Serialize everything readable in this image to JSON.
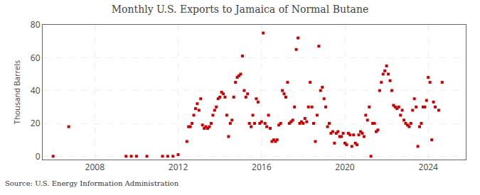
{
  "chart_data": {
    "type": "scatter",
    "title": "Monthly U.S. Exports to Jamaica of Normal Butane",
    "ylabel": "Thousand Barrels",
    "annotations": [
      "Source: U.S. Energy Information Administration"
    ],
    "color": "#cc0000",
    "marker": "square",
    "grid": true,
    "xlim": [
      2005.5,
      2025.8
    ],
    "xticks": [
      2008,
      2012,
      2016,
      2020,
      2024
    ],
    "ylim": [
      -2,
      80
    ],
    "yticks": [
      0,
      20,
      40,
      60,
      80
    ],
    "x": [
      2006.0,
      2006.75,
      2009.5,
      2009.75,
      2010.0,
      2010.5,
      2011.25,
      2011.5,
      2011.75,
      2012.0,
      2012.417,
      2012.5,
      2012.583,
      2012.667,
      2012.75,
      2012.833,
      2012.917,
      2013.0,
      2013.083,
      2013.167,
      2013.25,
      2013.333,
      2013.417,
      2013.5,
      2013.583,
      2013.667,
      2013.75,
      2013.833,
      2013.917,
      2014.0,
      2014.083,
      2014.167,
      2014.25,
      2014.333,
      2014.417,
      2014.5,
      2014.583,
      2014.667,
      2014.75,
      2014.833,
      2014.917,
      2015.0,
      2015.083,
      2015.167,
      2015.25,
      2015.333,
      2015.417,
      2015.5,
      2015.583,
      2015.667,
      2015.75,
      2015.833,
      2015.917,
      2016.0,
      2016.083,
      2016.167,
      2016.25,
      2016.333,
      2016.417,
      2016.5,
      2016.583,
      2016.667,
      2016.75,
      2016.833,
      2016.917,
      2017.0,
      2017.083,
      2017.167,
      2017.25,
      2017.333,
      2017.417,
      2017.5,
      2017.583,
      2017.667,
      2017.75,
      2017.833,
      2017.917,
      2018.0,
      2018.083,
      2018.167,
      2018.25,
      2018.333,
      2018.417,
      2018.5,
      2018.583,
      2018.667,
      2018.75,
      2018.833,
      2018.917,
      2019.0,
      2019.083,
      2019.167,
      2019.25,
      2019.333,
      2019.417,
      2019.5,
      2019.583,
      2019.667,
      2019.75,
      2019.833,
      2019.917,
      2020.0,
      2020.083,
      2020.167,
      2020.25,
      2020.333,
      2020.417,
      2020.5,
      2020.583,
      2020.667,
      2020.75,
      2020.833,
      2020.917,
      2021.0,
      2021.083,
      2021.167,
      2021.25,
      2021.333,
      2021.417,
      2021.5,
      2021.583,
      2021.667,
      2021.75,
      2021.833,
      2021.917,
      2022.0,
      2022.083,
      2022.167,
      2022.25,
      2022.333,
      2022.417,
      2022.5,
      2022.583,
      2022.667,
      2022.75,
      2022.833,
      2022.917,
      2023.0,
      2023.083,
      2023.167,
      2023.25,
      2023.333,
      2023.417,
      2023.5,
      2023.583,
      2023.667,
      2023.75,
      2023.833,
      2023.917,
      2024.0,
      2024.083,
      2024.167,
      2024.25,
      2024.333,
      2024.5,
      2024.667
    ],
    "values": [
      0,
      18,
      0,
      0,
      0,
      0,
      0,
      0,
      0,
      1,
      9,
      18,
      18,
      20,
      25,
      29,
      32,
      28,
      35,
      19,
      17,
      18,
      17,
      18,
      20,
      25,
      28,
      30,
      35,
      36,
      39,
      38,
      36,
      25,
      12,
      20,
      22,
      36,
      45,
      48,
      49,
      50,
      61,
      40,
      36,
      38,
      20,
      18,
      25,
      20,
      35,
      33,
      20,
      21,
      75,
      20,
      18,
      25,
      17,
      9,
      10,
      9,
      10,
      19,
      20,
      40,
      38,
      36,
      45,
      20,
      21,
      22,
      30,
      65,
      72,
      20,
      21,
      20,
      23,
      21,
      30,
      45,
      30,
      20,
      9,
      25,
      67,
      40,
      42,
      35,
      30,
      18,
      20,
      14,
      15,
      8,
      14,
      15,
      12,
      12,
      14,
      8,
      7,
      14,
      13,
      6,
      13,
      8,
      7,
      13,
      15,
      14,
      12,
      25,
      22,
      30,
      0,
      20,
      20,
      15,
      16,
      40,
      45,
      50,
      52,
      55,
      50,
      46,
      40,
      31,
      30,
      29,
      30,
      25,
      28,
      22,
      20,
      19,
      18,
      20,
      28,
      35,
      30,
      6,
      18,
      20,
      30,
      30,
      34,
      48,
      45,
      10,
      33,
      30,
      28,
      45
    ]
  }
}
